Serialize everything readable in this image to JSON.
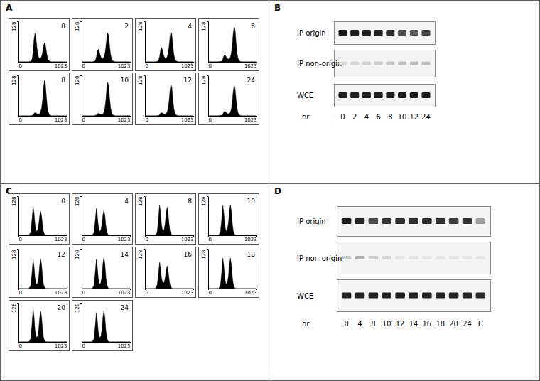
{
  "panel_labels": [
    "A",
    "B",
    "C",
    "D"
  ],
  "chart_data": [
    {
      "type": "area",
      "title": "0",
      "color": "#000000",
      "x": [
        0,
        220,
        260,
        290,
        310,
        330,
        350,
        370,
        390,
        410,
        430,
        450,
        470,
        490,
        510,
        530,
        550,
        570,
        590,
        610,
        630,
        660,
        700,
        1023
      ],
      "values": [
        0,
        0,
        2,
        9,
        32,
        72,
        90,
        77,
        45,
        24,
        14,
        10,
        12,
        17,
        30,
        49,
        60,
        54,
        34,
        16,
        7,
        2,
        0,
        0
      ],
      "xlim": [
        0,
        1023
      ],
      "ylim": [
        0,
        128
      ],
      "xticks": [
        0,
        1023
      ],
      "yticks": [
        128
      ]
    },
    {
      "type": "area",
      "title": "2",
      "color": "#000000",
      "x": [
        0,
        220,
        260,
        290,
        310,
        330,
        350,
        370,
        390,
        410,
        430,
        450,
        470,
        490,
        510,
        530,
        550,
        570,
        590,
        610,
        630,
        660,
        700,
        1023
      ],
      "values": [
        0,
        0,
        1,
        4,
        14,
        32,
        40,
        34,
        22,
        14,
        11,
        10,
        15,
        24,
        45,
        74,
        92,
        83,
        51,
        24,
        10,
        3,
        0,
        0
      ],
      "xlim": [
        0,
        1023
      ],
      "ylim": [
        0,
        128
      ],
      "xticks": [
        0,
        1023
      ],
      "yticks": [
        128
      ]
    },
    {
      "type": "area",
      "title": "4",
      "color": "#000000",
      "x": [
        0,
        220,
        260,
        290,
        310,
        330,
        350,
        370,
        390,
        410,
        430,
        450,
        470,
        490,
        510,
        530,
        550,
        570,
        590,
        610,
        630,
        660,
        700,
        1023
      ],
      "values": [
        0,
        0,
        1,
        5,
        16,
        36,
        45,
        38,
        24,
        15,
        11,
        10,
        16,
        25,
        47,
        77,
        96,
        86,
        53,
        25,
        10,
        3,
        0,
        0
      ],
      "xlim": [
        0,
        1023
      ],
      "ylim": [
        0,
        128
      ],
      "xticks": [
        0,
        1023
      ],
      "yticks": [
        128
      ]
    },
    {
      "type": "area",
      "title": "6",
      "color": "#000000",
      "x": [
        0,
        220,
        260,
        290,
        310,
        330,
        350,
        370,
        390,
        410,
        430,
        450,
        470,
        490,
        510,
        530,
        550,
        570,
        590,
        610,
        630,
        660,
        700,
        1023
      ],
      "values": [
        0,
        0,
        1,
        2,
        8,
        18,
        22,
        19,
        13,
        10,
        9,
        9,
        15,
        27,
        53,
        90,
        112,
        101,
        62,
        28,
        12,
        3,
        0,
        0
      ],
      "xlim": [
        0,
        1023
      ],
      "ylim": [
        0,
        128
      ],
      "xticks": [
        0,
        1023
      ],
      "yticks": [
        128
      ]
    },
    {
      "type": "area",
      "title": "8",
      "color": "#000000",
      "x": [
        0,
        220,
        260,
        290,
        310,
        330,
        350,
        370,
        390,
        410,
        430,
        450,
        470,
        490,
        510,
        530,
        550,
        570,
        590,
        610,
        630,
        660,
        700,
        1023
      ],
      "values": [
        0,
        0,
        0,
        1,
        4,
        8,
        10,
        9,
        7,
        6,
        6,
        7,
        13,
        24,
        50,
        89,
        112,
        101,
        62,
        28,
        12,
        3,
        0,
        0
      ],
      "xlim": [
        0,
        1023
      ],
      "ylim": [
        0,
        128
      ],
      "xticks": [
        0,
        1023
      ],
      "yticks": [
        128
      ]
    },
    {
      "type": "area",
      "title": "10",
      "color": "#000000",
      "x": [
        0,
        220,
        260,
        290,
        310,
        330,
        350,
        370,
        390,
        410,
        430,
        450,
        470,
        490,
        510,
        530,
        550,
        570,
        590,
        610,
        630,
        660,
        700,
        1023
      ],
      "values": [
        0,
        0,
        0,
        1,
        3,
        6,
        8,
        7,
        6,
        5,
        5,
        6,
        12,
        23,
        48,
        85,
        106,
        95,
        58,
        27,
        11,
        3,
        0,
        0
      ],
      "xlim": [
        0,
        1023
      ],
      "ylim": [
        0,
        128
      ],
      "xticks": [
        0,
        1023
      ],
      "yticks": [
        128
      ]
    },
    {
      "type": "area",
      "title": "12",
      "color": "#000000",
      "x": [
        0,
        220,
        260,
        290,
        310,
        330,
        350,
        370,
        390,
        410,
        430,
        450,
        470,
        490,
        510,
        530,
        550,
        570,
        590,
        610,
        630,
        660,
        700,
        1023
      ],
      "values": [
        0,
        0,
        0,
        1,
        4,
        8,
        10,
        9,
        7,
        6,
        6,
        7,
        12,
        22,
        45,
        80,
        100,
        90,
        55,
        25,
        10,
        3,
        0,
        0
      ],
      "xlim": [
        0,
        1023
      ],
      "ylim": [
        0,
        128
      ],
      "xticks": [
        0,
        1023
      ],
      "yticks": [
        128
      ]
    },
    {
      "type": "area",
      "title": "24",
      "color": "#000000",
      "x": [
        0,
        220,
        260,
        290,
        310,
        330,
        350,
        370,
        390,
        410,
        430,
        450,
        470,
        490,
        510,
        530,
        550,
        570,
        590,
        610,
        630,
        660,
        700,
        1023
      ],
      "values": [
        0,
        0,
        1,
        2,
        5,
        12,
        15,
        13,
        9,
        7,
        7,
        7,
        12,
        21,
        43,
        77,
        96,
        86,
        53,
        25,
        10,
        3,
        0,
        0
      ],
      "xlim": [
        0,
        1023
      ],
      "ylim": [
        0,
        128
      ],
      "xticks": [
        0,
        1023
      ],
      "yticks": [
        128
      ]
    },
    {
      "type": "area",
      "title": "0",
      "color": "#000000",
      "x": [
        0,
        220,
        260,
        290,
        310,
        330,
        350,
        370,
        390,
        410,
        430,
        450,
        470,
        490,
        510,
        530,
        550,
        570,
        590,
        610,
        630,
        660,
        700,
        1023
      ],
      "values": [
        0,
        0,
        10,
        57,
        95,
        72,
        35,
        18,
        13,
        20,
        36,
        64,
        78,
        63,
        32,
        12,
        4,
        1,
        0,
        0,
        0,
        0,
        0,
        0
      ],
      "xlim": [
        0,
        1023
      ],
      "ylim": [
        0,
        128
      ],
      "xticks": [
        0,
        1023
      ],
      "yticks": [
        128
      ]
    },
    {
      "type": "area",
      "title": "4",
      "color": "#000000",
      "x": [
        0,
        220,
        260,
        290,
        310,
        330,
        350,
        370,
        390,
        410,
        430,
        450,
        470,
        490,
        510,
        530,
        550,
        570,
        590,
        610,
        630,
        660,
        700,
        1023
      ],
      "values": [
        0,
        0,
        9,
        53,
        88,
        66,
        33,
        17,
        13,
        20,
        37,
        67,
        82,
        66,
        33,
        12,
        4,
        1,
        0,
        0,
        0,
        0,
        0,
        0
      ],
      "xlim": [
        0,
        1023
      ],
      "ylim": [
        0,
        128
      ],
      "xticks": [
        0,
        1023
      ],
      "yticks": [
        128
      ]
    },
    {
      "type": "area",
      "title": "8",
      "color": "#000000",
      "x": [
        0,
        220,
        260,
        290,
        310,
        330,
        350,
        370,
        390,
        410,
        430,
        450,
        470,
        490,
        510,
        530,
        550,
        570,
        590,
        610,
        630,
        660,
        700,
        1023
      ],
      "values": [
        0,
        0,
        10,
        60,
        100,
        75,
        36,
        18,
        13,
        21,
        40,
        75,
        92,
        74,
        37,
        14,
        5,
        1,
        0,
        0,
        0,
        0,
        0,
        0
      ],
      "xlim": [
        0,
        1023
      ],
      "ylim": [
        0,
        128
      ],
      "xticks": [
        0,
        1023
      ],
      "yticks": [
        128
      ]
    },
    {
      "type": "area",
      "title": "10",
      "color": "#000000",
      "x": [
        0,
        220,
        260,
        290,
        310,
        330,
        350,
        370,
        390,
        410,
        430,
        450,
        470,
        490,
        510,
        530,
        550,
        570,
        590,
        610,
        630,
        660,
        700,
        1023
      ],
      "values": [
        0,
        0,
        10,
        59,
        98,
        74,
        36,
        18,
        14,
        22,
        42,
        80,
        100,
        80,
        40,
        15,
        5,
        1,
        0,
        0,
        0,
        0,
        0,
        0
      ],
      "xlim": [
        0,
        1023
      ],
      "ylim": [
        0,
        128
      ],
      "xticks": [
        0,
        1023
      ],
      "yticks": [
        128
      ]
    },
    {
      "type": "area",
      "title": "12",
      "color": "#000000",
      "x": [
        0,
        220,
        260,
        290,
        310,
        330,
        350,
        370,
        390,
        410,
        430,
        450,
        470,
        490,
        510,
        530,
        550,
        570,
        590,
        610,
        630,
        660,
        700,
        1023
      ],
      "values": [
        0,
        0,
        10,
        57,
        95,
        72,
        35,
        17,
        13,
        21,
        40,
        77,
        96,
        77,
        38,
        14,
        5,
        1,
        0,
        0,
        0,
        0,
        0,
        0
      ],
      "xlim": [
        0,
        1023
      ],
      "ylim": [
        0,
        128
      ],
      "xticks": [
        0,
        1023
      ],
      "yticks": [
        128
      ]
    },
    {
      "type": "area",
      "title": "14",
      "color": "#000000",
      "x": [
        0,
        220,
        260,
        290,
        310,
        330,
        350,
        370,
        390,
        410,
        430,
        450,
        470,
        490,
        510,
        530,
        550,
        570,
        590,
        610,
        630,
        660,
        700,
        1023
      ],
      "values": [
        0,
        0,
        10,
        58,
        96,
        72,
        35,
        18,
        14,
        22,
        42,
        82,
        102,
        82,
        41,
        15,
        5,
        1,
        0,
        0,
        0,
        0,
        0,
        0
      ],
      "xlim": [
        0,
        1023
      ],
      "ylim": [
        0,
        128
      ],
      "xticks": [
        0,
        1023
      ],
      "yticks": [
        128
      ]
    },
    {
      "type": "area",
      "title": "16",
      "color": "#000000",
      "x": [
        0,
        220,
        260,
        290,
        310,
        330,
        350,
        370,
        390,
        410,
        430,
        450,
        470,
        490,
        510,
        530,
        550,
        570,
        590,
        610,
        630,
        660,
        700,
        1023
      ],
      "values": [
        0,
        0,
        12,
        52,
        86,
        66,
        36,
        22,
        18,
        22,
        36,
        60,
        74,
        60,
        32,
        13,
        5,
        1,
        0,
        0,
        0,
        0,
        0,
        0
      ],
      "xlim": [
        0,
        1023
      ],
      "ylim": [
        0,
        128
      ],
      "xticks": [
        0,
        1023
      ],
      "yticks": [
        128
      ]
    },
    {
      "type": "area",
      "title": "18",
      "color": "#000000",
      "x": [
        0,
        220,
        260,
        290,
        310,
        330,
        350,
        370,
        390,
        410,
        430,
        450,
        470,
        490,
        510,
        530,
        550,
        570,
        590,
        610,
        630,
        660,
        700,
        1023
      ],
      "values": [
        0,
        0,
        10,
        60,
        100,
        75,
        36,
        18,
        14,
        22,
        42,
        80,
        100,
        80,
        40,
        15,
        5,
        1,
        0,
        0,
        0,
        0,
        0,
        0
      ],
      "xlim": [
        0,
        1023
      ],
      "ylim": [
        0,
        128
      ],
      "xticks": [
        0,
        1023
      ],
      "yticks": [
        128
      ]
    },
    {
      "type": "area",
      "title": "20",
      "color": "#000000",
      "x": [
        0,
        220,
        260,
        290,
        310,
        330,
        350,
        370,
        390,
        410,
        430,
        450,
        470,
        490,
        510,
        530,
        550,
        570,
        590,
        610,
        630,
        660,
        700,
        1023
      ],
      "values": [
        0,
        0,
        11,
        65,
        108,
        81,
        38,
        19,
        14,
        22,
        42,
        80,
        100,
        80,
        40,
        15,
        5,
        1,
        0,
        0,
        0,
        0,
        0,
        0
      ],
      "xlim": [
        0,
        1023
      ],
      "ylim": [
        0,
        128
      ],
      "xticks": [
        0,
        1023
      ],
      "yticks": [
        128
      ]
    },
    {
      "type": "area",
      "title": "24",
      "color": "#000000",
      "x": [
        0,
        220,
        260,
        290,
        310,
        330,
        350,
        370,
        390,
        410,
        430,
        450,
        470,
        490,
        510,
        530,
        550,
        570,
        590,
        610,
        630,
        660,
        700,
        1023
      ],
      "values": [
        0,
        0,
        10,
        58,
        96,
        72,
        35,
        18,
        14,
        22,
        42,
        82,
        102,
        82,
        41,
        15,
        5,
        1,
        0,
        0,
        0,
        0,
        0,
        0
      ],
      "xlim": [
        0,
        1023
      ],
      "ylim": [
        0,
        128
      ],
      "xticks": [
        0,
        1023
      ],
      "yticks": [
        128
      ]
    }
  ],
  "gels": [
    {
      "rows": [
        {
          "label": "IP origin",
          "intensities": [
            95,
            92,
            92,
            90,
            85,
            72,
            65,
            75
          ]
        },
        {
          "label": "IP non-origin",
          "intensities": [
            8,
            10,
            12,
            15,
            18,
            20,
            22,
            20
          ]
        },
        {
          "label": "WCE",
          "intensities": [
            92,
            92,
            93,
            93,
            93,
            93,
            92,
            93
          ]
        }
      ],
      "lane_label": "hr",
      "lanes": [
        "0",
        "2",
        "4",
        "6",
        "8",
        "10",
        "12",
        "24"
      ]
    },
    {
      "rows": [
        {
          "label": "IP origin",
          "intensities": [
            92,
            90,
            72,
            82,
            86,
            86,
            86,
            86,
            78,
            84,
            35
          ]
        },
        {
          "label": "IP non-origin",
          "intensities": [
            18,
            28,
            15,
            10,
            4,
            4,
            3,
            3,
            3,
            3,
            3
          ]
        },
        {
          "label": "WCE",
          "intensities": [
            90,
            90,
            90,
            90,
            92,
            90,
            90,
            90,
            90,
            90,
            88
          ]
        }
      ],
      "lane_label": "hr:",
      "lanes": [
        "0",
        "4",
        "8",
        "10",
        "12",
        "14",
        "16",
        "18",
        "20",
        "24",
        "C"
      ]
    }
  ]
}
